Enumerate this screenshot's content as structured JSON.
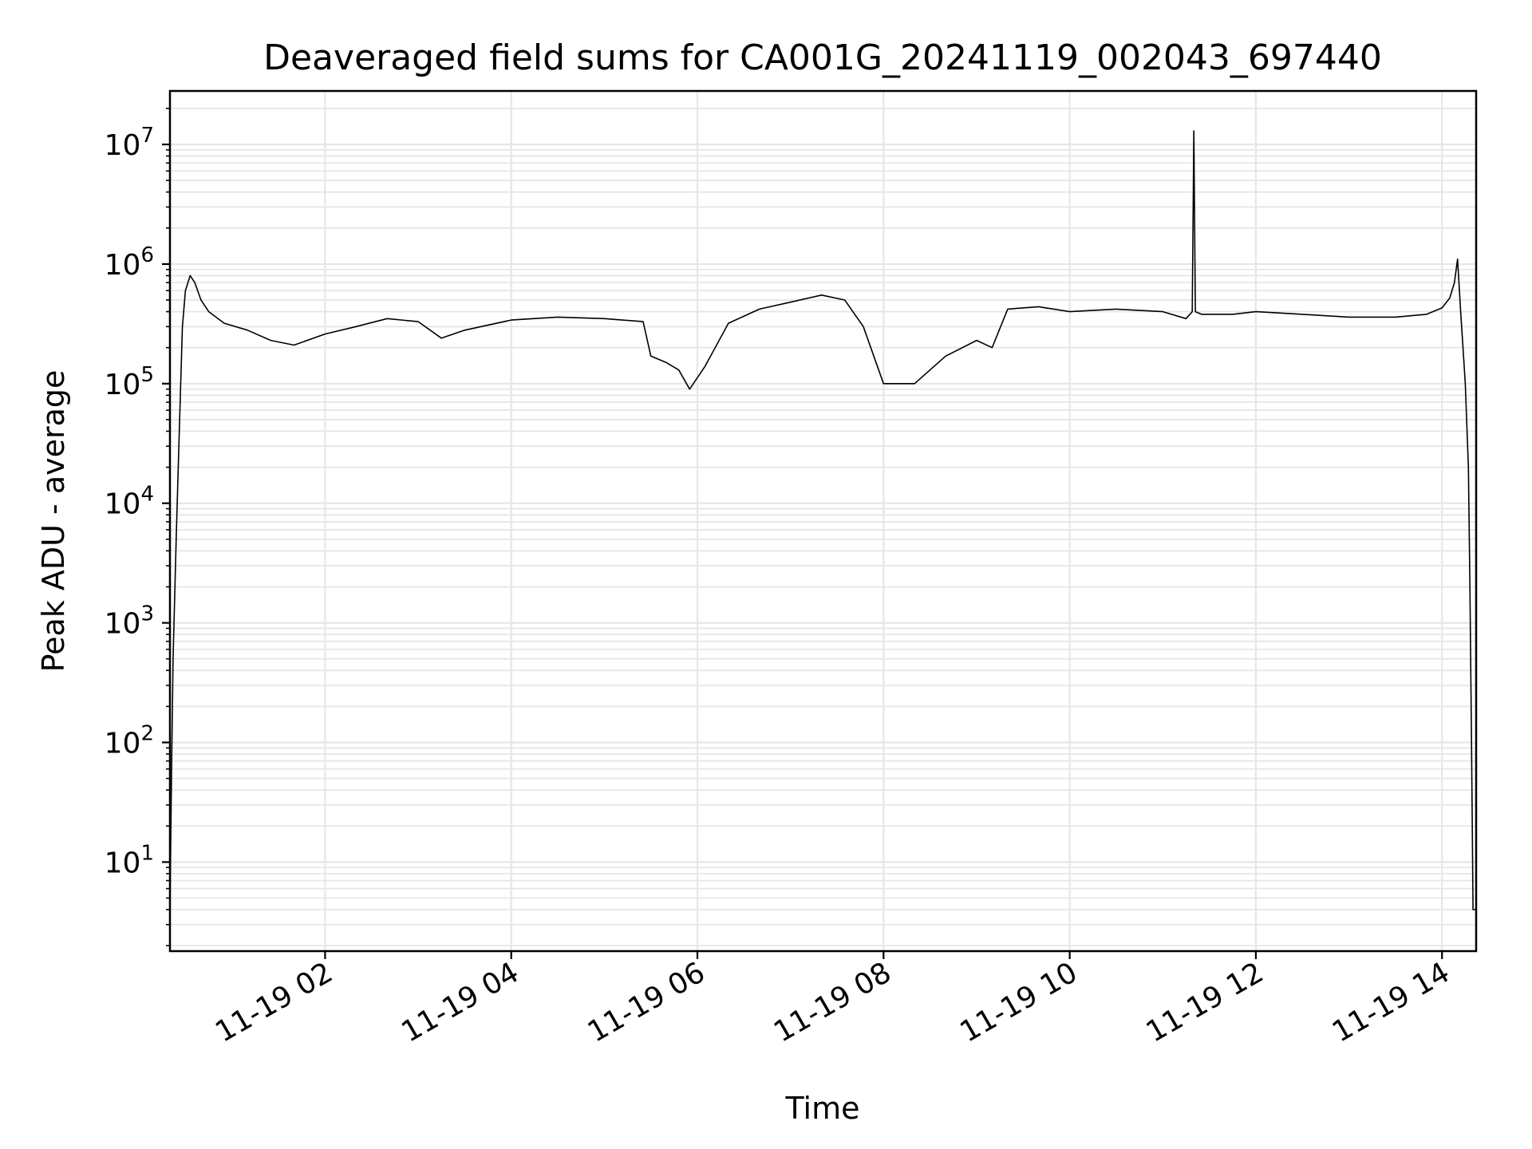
{
  "chart_data": {
    "type": "line",
    "title": "Deaveraged field sums for CA001G_20241119_002043_697440",
    "xlabel": "Time",
    "ylabel": "Peak ADU - average",
    "yscale": "log",
    "ylim": [
      1.8,
      28000000
    ],
    "xlim": [
      "2024-11-19T00:20",
      "2024-11-19T14:22"
    ],
    "x_ticks": [
      {
        "value": "2024-11-19T02:00",
        "label": "11-19 02"
      },
      {
        "value": "2024-11-19T04:00",
        "label": "11-19 04"
      },
      {
        "value": "2024-11-19T06:00",
        "label": "11-19 06"
      },
      {
        "value": "2024-11-19T08:00",
        "label": "11-19 08"
      },
      {
        "value": "2024-11-19T10:00",
        "label": "11-19 10"
      },
      {
        "value": "2024-11-19T12:00",
        "label": "11-19 12"
      },
      {
        "value": "2024-11-19T14:00",
        "label": "11-19 14"
      }
    ],
    "y_ticks": [
      {
        "value": 10,
        "base": "10",
        "exp": "1"
      },
      {
        "value": 100,
        "base": "10",
        "exp": "2"
      },
      {
        "value": 1000,
        "base": "10",
        "exp": "3"
      },
      {
        "value": 10000,
        "base": "10",
        "exp": "4"
      },
      {
        "value": 100000,
        "base": "10",
        "exp": "5"
      },
      {
        "value": 1000000,
        "base": "10",
        "exp": "6"
      },
      {
        "value": 10000000,
        "base": "10",
        "exp": "7"
      }
    ],
    "grid": true,
    "line_color": "#000000",
    "grid_color": "#e6e6e6",
    "series": [
      {
        "x": [
          "2024-11-19T00:20",
          "2024-11-19T00:21",
          "2024-11-19T00:22",
          "2024-11-19T00:24",
          "2024-11-19T00:26",
          "2024-11-19T00:28",
          "2024-11-19T00:30",
          "2024-11-19T00:33",
          "2024-11-19T00:36",
          "2024-11-19T00:40",
          "2024-11-19T00:45",
          "2024-11-19T00:55",
          "2024-11-19T01:10",
          "2024-11-19T01:25",
          "2024-11-19T01:40",
          "2024-11-19T02:00",
          "2024-11-19T02:20",
          "2024-11-19T02:40",
          "2024-11-19T03:00",
          "2024-11-19T03:15",
          "2024-11-19T03:30",
          "2024-11-19T04:00",
          "2024-11-19T04:30",
          "2024-11-19T05:00",
          "2024-11-19T05:25",
          "2024-11-19T05:30",
          "2024-11-19T05:40",
          "2024-11-19T05:48",
          "2024-11-19T05:55",
          "2024-11-19T06:05",
          "2024-11-19T06:20",
          "2024-11-19T06:40",
          "2024-11-19T07:00",
          "2024-11-19T07:20",
          "2024-11-19T07:35",
          "2024-11-19T07:47",
          "2024-11-19T08:00",
          "2024-11-19T08:20",
          "2024-11-19T08:40",
          "2024-11-19T09:00",
          "2024-11-19T09:10",
          "2024-11-19T09:20",
          "2024-11-19T09:40",
          "2024-11-19T10:00",
          "2024-11-19T10:30",
          "2024-11-19T11:00",
          "2024-11-19T11:15",
          "2024-11-19T11:19",
          "2024-11-19T11:20",
          "2024-11-19T11:21",
          "2024-11-19T11:25",
          "2024-11-19T11:45",
          "2024-11-19T12:00",
          "2024-11-19T12:30",
          "2024-11-19T13:00",
          "2024-11-19T13:30",
          "2024-11-19T13:50",
          "2024-11-19T14:00",
          "2024-11-19T14:05",
          "2024-11-19T14:08",
          "2024-11-19T14:10",
          "2024-11-19T14:12",
          "2024-11-19T14:15",
          "2024-11-19T14:17",
          "2024-11-19T14:18",
          "2024-11-19T14:19",
          "2024-11-19T14:20",
          "2024-11-19T14:22"
        ],
        "values": [
          4,
          50,
          500,
          5000,
          40000,
          300000,
          600000,
          800000,
          700000,
          500000,
          400000,
          320000,
          280000,
          230000,
          210000,
          260000,
          300000,
          350000,
          330000,
          240000,
          280000,
          340000,
          360000,
          350000,
          330000,
          170000,
          150000,
          130000,
          90000,
          140000,
          320000,
          420000,
          480000,
          550000,
          500000,
          300000,
          100000,
          100000,
          170000,
          230000,
          200000,
          420000,
          440000,
          400000,
          420000,
          400000,
          350000,
          400000,
          13000000,
          400000,
          380000,
          380000,
          400000,
          380000,
          360000,
          360000,
          380000,
          430000,
          520000,
          700000,
          1100000,
          400000,
          100000,
          20000,
          2000,
          100,
          4,
          4
        ]
      }
    ]
  }
}
